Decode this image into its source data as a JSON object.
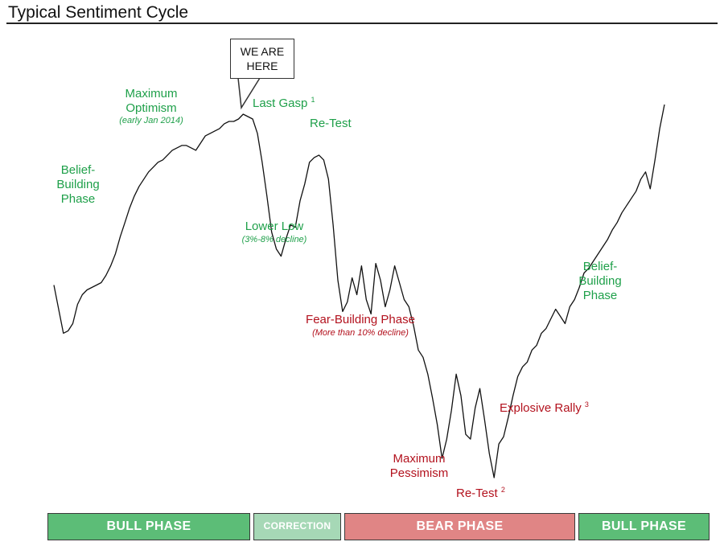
{
  "chart_data": {
    "type": "line",
    "title": "Typical Sentiment Cycle",
    "xlabel": "",
    "ylabel": "",
    "grid": false,
    "series": [
      {
        "color": "#111111",
        "values": [
          0.8,
          0.7,
          0.6,
          0.61,
          0.64,
          0.72,
          0.76,
          0.78,
          0.79,
          0.8,
          0.81,
          0.84,
          0.88,
          0.93,
          1.0,
          1.06,
          1.12,
          1.17,
          1.21,
          1.24,
          1.27,
          1.29,
          1.31,
          1.32,
          1.34,
          1.36,
          1.37,
          1.38,
          1.38,
          1.37,
          1.36,
          1.39,
          1.42,
          1.43,
          1.44,
          1.45,
          1.47,
          1.48,
          1.48,
          1.49,
          1.51,
          1.5,
          1.49,
          1.43,
          1.31,
          1.17,
          1.02,
          0.95,
          0.92,
          0.99,
          1.05,
          1.04,
          1.15,
          1.22,
          1.31,
          1.33,
          1.34,
          1.32,
          1.24,
          1.05,
          0.82,
          0.69,
          0.73,
          0.83,
          0.76,
          0.88,
          0.74,
          0.68,
          0.89,
          0.82,
          0.71,
          0.78,
          0.88,
          0.81,
          0.74,
          0.71,
          0.63,
          0.53,
          0.5,
          0.43,
          0.33,
          0.22,
          0.08,
          0.16,
          0.28,
          0.43,
          0.34,
          0.18,
          0.16,
          0.29,
          0.37,
          0.24,
          0.1,
          0.0,
          0.14,
          0.17,
          0.25,
          0.34,
          0.42,
          0.46,
          0.48,
          0.53,
          0.55,
          0.6,
          0.62,
          0.66,
          0.7,
          0.67,
          0.64,
          0.71,
          0.74,
          0.79,
          0.85,
          0.87,
          0.9,
          0.93,
          0.96,
          0.99,
          1.03,
          1.06,
          1.1,
          1.13,
          1.16,
          1.19,
          1.24,
          1.27,
          1.2,
          1.32,
          1.45,
          1.55
        ]
      }
    ],
    "annotations": [
      {
        "text": "Belief-\nBuilding\nPhase",
        "color": "#1fa04a"
      },
      {
        "text": "Maximum\nOptimism",
        "sub": "(early Jan 2014)",
        "color": "#1fa04a"
      },
      {
        "text": "Last Gasp",
        "sup": "1",
        "color": "#1fa04a"
      },
      {
        "text": "Re-Test",
        "color": "#1fa04a"
      },
      {
        "text": "Lower Low",
        "sub": "(3%-8% decline)",
        "color": "#1fa04a"
      },
      {
        "text": "Fear-Building Phase",
        "sub": "(More than 10% decline)",
        "color": "#b3121e"
      },
      {
        "text": "Maximum\nPessimism",
        "color": "#b3121e"
      },
      {
        "text": "Re-Test",
        "sup": "2",
        "color": "#b3121e"
      },
      {
        "text": "Explosive Rally",
        "sup": "3",
        "color": "#b3121e"
      },
      {
        "text": "Belief-\nBuilding\nPhase",
        "color": "#1fa04a"
      }
    ],
    "callout": {
      "text": "WE ARE\nHERE"
    },
    "phases": [
      {
        "label": "BULL PHASE",
        "color": "#5cbd77"
      },
      {
        "label": "CORRECTION",
        "color": "#a6d8b6"
      },
      {
        "label": "BEAR PHASE",
        "color": "#e08585"
      },
      {
        "label": "BULL PHASE",
        "color": "#5cbd77"
      }
    ]
  }
}
